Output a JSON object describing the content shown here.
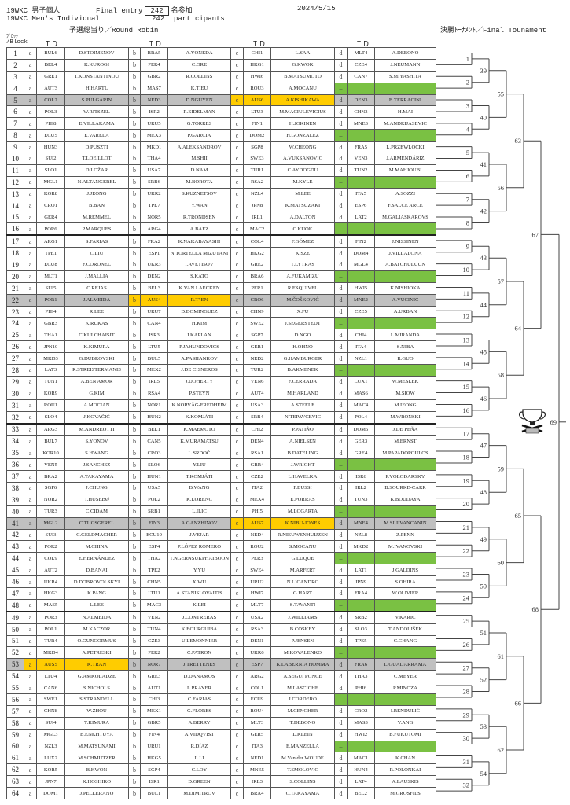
{
  "header": {
    "title_jp": "19WKC 男子個人",
    "final_entry_label": "Final entry",
    "entry_count": "242",
    "entry_suffix_jp": "名参加",
    "date": "2024/5/15",
    "title_en": "19WKC Men's Individual",
    "participants_count": "242",
    "participants_label": "participants",
    "round_robin_label": "予選総当り／Round Robin",
    "final_tournament_label": "決勝ﾄｰﾅﾒﾝﾄ／Final Tounament",
    "block_label_jp": "ﾌﾞﾛｯｸ",
    "block_label_en": "/Block",
    "id_label": "ＩＤ"
  },
  "colors": {
    "highlight_gold": "#ffcc00",
    "highlight_grey": "#c0c0c0",
    "bye_green": "#7ac143"
  },
  "groups": [
    "a",
    "b",
    "c",
    "d"
  ],
  "bye_marker": "–",
  "rows": [
    {
      "no": "1",
      "a": [
        "BUL6",
        "D.STOIMENOV"
      ],
      "b": [
        "BRA5",
        "A.YONEDA"
      ],
      "c": [
        "CHI1",
        "L.SAA"
      ],
      "d": [
        "MLT4",
        "A.DEBONO"
      ]
    },
    {
      "no": "2",
      "a": [
        "BEL4",
        "K.KUROGI"
      ],
      "b": [
        "PER4",
        "C.ORE"
      ],
      "c": [
        "HKG1",
        "G.KWOK"
      ],
      "d": [
        "CZE4",
        "J.NEUMANN"
      ]
    },
    {
      "no": "3",
      "a": [
        "GRE1",
        "T.KONSTANTINOU"
      ],
      "b": [
        "GBR2",
        "R.COLLINS"
      ],
      "c": [
        "HWI6",
        "B.MATSUMOTO"
      ],
      "d": [
        "CAN7",
        "S.MIYASHITA"
      ]
    },
    {
      "no": "4",
      "a": [
        "AUT3",
        "H.HÄRTL"
      ],
      "b": [
        "MAS7",
        "K.TIEU"
      ],
      "c": [
        "ROU3",
        "A.MOCANU"
      ],
      "d": null
    },
    {
      "no": "5",
      "a": [
        "COL2",
        "S.PULGARIN"
      ],
      "b": [
        "NED3",
        "D.NGUYEN"
      ],
      "c": [
        "AUS6",
        "A.KISHIKAWA"
      ],
      "d": [
        "DEN3",
        "B.TERRACINI"
      ],
      "hl": {
        "a": "grey",
        "b": "grey",
        "c": "gold",
        "d": "grey"
      }
    },
    {
      "no": "6",
      "a": [
        "POL3",
        "W.RITSZEL"
      ],
      "b": [
        "ISR2",
        "R.EIDELMAN"
      ],
      "c": [
        "LTU3",
        "M.MACIULEVICIUS"
      ],
      "d": [
        "CHN3",
        "H.MAI"
      ]
    },
    {
      "no": "7",
      "a": [
        "PHI8",
        "E.VILLARAMA"
      ],
      "b": [
        "URU5",
        "G.TORRES"
      ],
      "c": [
        "FIN1",
        "H.JOKINEN"
      ],
      "d": [
        "MNE3",
        "M.ANDRIJASEVIC"
      ]
    },
    {
      "no": "8",
      "a": [
        "ECU5",
        "E.VARELA"
      ],
      "b": [
        "MEX3",
        "P.GARCIA"
      ],
      "c": [
        "DOM2",
        "H.GONZALEZ"
      ],
      "d": null
    },
    {
      "no": "9",
      "a": [
        "HUN3",
        "D.PUSZTI"
      ],
      "b": [
        "MKD1",
        "A.ALEKSANDROV"
      ],
      "c": [
        "SGP8",
        "W.CHEONG"
      ],
      "d": [
        "FRA5",
        "L.PRZEWLOCKI"
      ]
    },
    {
      "no": "10",
      "a": [
        "SUI2",
        "T.LOEILLOT"
      ],
      "b": [
        "THA4",
        "M.SHII"
      ],
      "c": [
        "SWE3",
        "A.VUKSANOVIC"
      ],
      "d": [
        "VEN3",
        "J.ARMENDÁRIZ"
      ]
    },
    {
      "no": "11",
      "a": [
        "SLO1",
        "D.LOŽAR"
      ],
      "b": [
        "USA7",
        "D.NAM"
      ],
      "c": [
        "TUR1",
        "C.AYDOGDU"
      ],
      "d": [
        "TUN2",
        "M.MAHJOUBI"
      ]
    },
    {
      "no": "12",
      "a": [
        "MGL1",
        "N.ALTANGEREL"
      ],
      "b": [
        "SRB6",
        "M.BOROTA"
      ],
      "c": [
        "RSA2",
        "M.KYLE"
      ],
      "d": null
    },
    {
      "no": "13",
      "a": [
        "KOR8",
        "J.JEONG"
      ],
      "b": [
        "UKR2",
        "S.KUZNETSOV"
      ],
      "c": [
        "NZL4",
        "M.LEE"
      ],
      "d": [
        "ITA5",
        "A.SOZZI"
      ]
    },
    {
      "no": "14",
      "a": [
        "CRO1",
        "B.BAN"
      ],
      "b": [
        "TPE7",
        "Y.WAN"
      ],
      "c": [
        "JPN8",
        "K.MATSUZAKI"
      ],
      "d": [
        "ESP6",
        "F.SALCE ARCE"
      ]
    },
    {
      "no": "15",
      "a": [
        "GER4",
        "M.REMMEL"
      ],
      "b": [
        "NOR5",
        "R.TRONDSEN"
      ],
      "c": [
        "IRL1",
        "A.DALTON"
      ],
      "d": [
        "LAT2",
        "M.GALIASKAROVS"
      ]
    },
    {
      "no": "16",
      "a": [
        "POR6",
        "P.MARQUES"
      ],
      "b": [
        "ARG4",
        "A.BAEZ"
      ],
      "c": [
        "MAC2",
        "C.KUOK"
      ],
      "d": null
    },
    {
      "no": "17",
      "a": [
        "ARG1",
        "S.FARIAS"
      ],
      "b": [
        "FRA2",
        "K.NAKABAYASHI"
      ],
      "c": [
        "COL4",
        "F.GÓMEZ"
      ],
      "d": [
        "FIN2",
        "J.NISSINEN"
      ]
    },
    {
      "no": "18",
      "a": [
        "TPE1",
        "C.LIU"
      ],
      "b": [
        "ESP1",
        "N.TORTELLA MIZUTANI"
      ],
      "c": [
        "HKG2",
        "K.SZE"
      ],
      "d": [
        "DOM4",
        "J.VILLALONA"
      ]
    },
    {
      "no": "19",
      "a": [
        "ECU8",
        "F.CORONEL"
      ],
      "b": [
        "UKR3",
        "I.AVETISOV"
      ],
      "c": [
        "GRE2",
        "T.LYTRAS"
      ],
      "d": [
        "MGL4",
        "A.BATCHULUUN"
      ]
    },
    {
      "no": "20",
      "a": [
        "MLT1",
        "J.MALLIA"
      ],
      "b": [
        "DEN2",
        "S.KATO"
      ],
      "c": [
        "BRA6",
        "A.FUKAMIZU"
      ],
      "d": null
    },
    {
      "no": "21",
      "a": [
        "SUI5",
        "C.REJAS"
      ],
      "b": [
        "BEL3",
        "K.VAN LAECKEN"
      ],
      "c": [
        "PER1",
        "R.ESQUIVEL"
      ],
      "d": [
        "HWI5",
        "K.NISHIOKA"
      ]
    },
    {
      "no": "22",
      "a": [
        "POR1",
        "J.ALMEIDA"
      ],
      "b": [
        "AUS4",
        "R.T' EN"
      ],
      "c": [
        "CRO6",
        "M.ČOŠKOVIĆ"
      ],
      "d": [
        "MNE2",
        "A.VUCINIC"
      ],
      "hl": {
        "a": "grey",
        "b": "gold",
        "c": "grey",
        "d": "grey"
      }
    },
    {
      "no": "23",
      "a": [
        "PHI4",
        "R.LEE"
      ],
      "b": [
        "URU7",
        "D.DOMINGUEZ"
      ],
      "c": [
        "CHN9",
        "X.FU"
      ],
      "d": [
        "CZE5",
        "A.URBAN"
      ]
    },
    {
      "no": "24",
      "a": [
        "GBR3",
        "K.RUKAS"
      ],
      "b": [
        "CAN4",
        "H.KIM"
      ],
      "c": [
        "SWE2",
        "J.SEGERSTEDT"
      ],
      "d": null
    },
    {
      "no": "25",
      "a": [
        "THA1",
        "C.KULCHAISIT"
      ],
      "b": [
        "ISR3",
        "I.KAPLAN"
      ],
      "c": [
        "SGP7",
        "D.NGO"
      ],
      "d": [
        "CHI4",
        "L.MIRANDA"
      ]
    },
    {
      "no": "26",
      "a": [
        "JPN10",
        "K.KIMURA"
      ],
      "b": [
        "LTU5",
        "P.JAHUNDOVICS"
      ],
      "c": [
        "GER1",
        "H.OHNO"
      ],
      "d": [
        "ITA4",
        "S.NIBA"
      ]
    },
    {
      "no": "27",
      "a": [
        "MKD3",
        "G.DUBROVSKI"
      ],
      "b": [
        "BUL5",
        "A.PASHANKOV"
      ],
      "c": [
        "NED2",
        "G.HAMBURGER"
      ],
      "d": [
        "NZL1",
        "R.GUO"
      ]
    },
    {
      "no": "28",
      "a": [
        "LAT3",
        "R.STREISTERMANIS"
      ],
      "b": [
        "MEX2",
        "J.DE CISNEROS"
      ],
      "c": [
        "TUR2",
        "B.AKMENEK"
      ],
      "d": null
    },
    {
      "no": "29",
      "a": [
        "TUN1",
        "A.BEN AMOR"
      ],
      "b": [
        "IRL5",
        "J.DOHERTY"
      ],
      "c": [
        "VEN6",
        "F.CERRADA"
      ],
      "d": [
        "LUX1",
        "W.MESLEK"
      ]
    },
    {
      "no": "30",
      "a": [
        "KOR9",
        "G.KIM"
      ],
      "b": [
        "RSA4",
        "P.STEYN"
      ],
      "c": [
        "AUT4",
        "M.HARLAND"
      ],
      "d": [
        "MAS6",
        "M.SIOW"
      ]
    },
    {
      "no": "31",
      "a": [
        "ROU1",
        "A.MOCIAN"
      ],
      "b": [
        "NOR1",
        "K.NORVÅG-FREDHEIM"
      ],
      "c": [
        "USA3",
        "A.STEELE"
      ],
      "d": [
        "MAC4",
        "M.IEONG"
      ]
    },
    {
      "no": "32",
      "a": [
        "SLO4",
        "J.KOVAČIČ"
      ],
      "b": [
        "HUN2",
        "K.KOMJÁTI"
      ],
      "c": [
        "SRB4",
        "N.TEPAVCEVIC"
      ],
      "d": [
        "POL4",
        "M.WROŃSKI"
      ]
    },
    {
      "no": "33",
      "a": [
        "ARG3",
        "M.ANDREOTTI"
      ],
      "b": [
        "BEL1",
        "K.MAEMOTO"
      ],
      "c": [
        "CHI2",
        "P.PATIÑO"
      ],
      "d": [
        "DOM5",
        "J.DE PEÑA"
      ]
    },
    {
      "no": "34",
      "a": [
        "BUL7",
        "S.YONOV"
      ],
      "b": [
        "CAN5",
        "K.MURAMATSU"
      ],
      "c": [
        "DEN4",
        "A.NIELSEN"
      ],
      "d": [
        "GER3",
        "M.ERNST"
      ]
    },
    {
      "no": "35",
      "a": [
        "KOR10",
        "S.HWANG"
      ],
      "b": [
        "CRO3",
        "L.SRDOČ"
      ],
      "c": [
        "RSA1",
        "B.DATELING"
      ],
      "d": [
        "GRE4",
        "M.PAPADOPOULOS"
      ]
    },
    {
      "no": "36",
      "a": [
        "VEN5",
        "J.SANCHEZ"
      ],
      "b": [
        "SLO6",
        "Y.LIU"
      ],
      "c": [
        "GBR4",
        "J.WRIGHT"
      ],
      "d": null
    },
    {
      "no": "37",
      "a": [
        "BRA2",
        "A.TAKAYAMA"
      ],
      "b": [
        "HUN1",
        "T.KOMJÁTI"
      ],
      "c": [
        "CZE2",
        "L.HAVELKA"
      ],
      "d": [
        "ISR6",
        "P.VOLODARSKY"
      ]
    },
    {
      "no": "38",
      "a": [
        "SGP6",
        "J.CHUNG"
      ],
      "b": [
        "USA5",
        "B.WANG"
      ],
      "c": [
        "ITA2",
        "F.BUSSI"
      ],
      "d": [
        "IRL2",
        "B.SOURKE-CARR"
      ]
    },
    {
      "no": "39",
      "a": [
        "NOR2",
        "T.HUSEBØ"
      ],
      "b": [
        "POL2",
        "K.LORENC"
      ],
      "c": [
        "MEX4",
        "E.PORRAS"
      ],
      "d": [
        "TUN3",
        "K.BOUDAYA"
      ]
    },
    {
      "no": "40",
      "a": [
        "TUR3",
        "C.CIDAM"
      ],
      "b": [
        "SRB1",
        "L.ILIC"
      ],
      "c": [
        "PHI5",
        "M.LOGARTA"
      ],
      "d": null
    },
    {
      "no": "41",
      "a": [
        "MGL2",
        "C.TUGSGEREL"
      ],
      "b": [
        "FIN3",
        "A.GANZHINOV"
      ],
      "c": [
        "AUS7",
        "K.NIBU-JONES"
      ],
      "d": [
        "MNE4",
        "M.SLJIVANCANIN"
      ],
      "hl": {
        "a": "grey",
        "b": "grey",
        "c": "gold",
        "d": "grey"
      }
    },
    {
      "no": "42",
      "a": [
        "SUI3",
        "C.GELDMACHER"
      ],
      "b": [
        "ECU10",
        "J.VEJAR"
      ],
      "c": [
        "NED4",
        "R.NIEUWENHUIJZEN"
      ],
      "d": [
        "NZL8",
        "Z.PENN"
      ]
    },
    {
      "no": "43",
      "a": [
        "POR2",
        "M.CHINA"
      ],
      "b": [
        "ESP4",
        "P.LÓPEZ ROMERO"
      ],
      "c": [
        "ROU2",
        "S.MOCANU"
      ],
      "d": [
        "MKD2",
        "M.IVANOVSKI"
      ]
    },
    {
      "no": "44",
      "a": [
        "COL9",
        "E.HERNÁNDEZ"
      ],
      "b": [
        "THA2",
        "T.NGERNSUKPHAIBOON"
      ],
      "c": [
        "PER3",
        "G.LUQUE"
      ],
      "d": null
    },
    {
      "no": "45",
      "a": [
        "AUT2",
        "D.BANAI"
      ],
      "b": [
        "TPE2",
        "Y.YU"
      ],
      "c": [
        "SWE4",
        "M.ARFERT"
      ],
      "d": [
        "LAT1",
        "J.GALDINS"
      ]
    },
    {
      "no": "46",
      "a": [
        "UKR4",
        "D.DOBROVOLSKYI"
      ],
      "b": [
        "CHN5",
        "X.WU"
      ],
      "c": [
        "URU2",
        "N.LICANDRO"
      ],
      "d": [
        "JPN9",
        "S.OHIRA"
      ]
    },
    {
      "no": "47",
      "a": [
        "HKG3",
        "K.PANG"
      ],
      "b": [
        "LTU1",
        "A.STANISLOVAITIS"
      ],
      "c": [
        "HWI7",
        "G.HART"
      ],
      "d": [
        "FRA4",
        "W.OLIVIER"
      ]
    },
    {
      "no": "48",
      "a": [
        "MAS5",
        "L.LEE"
      ],
      "b": [
        "MAC3",
        "K.LEI"
      ],
      "c": [
        "MLT7",
        "S.TAVANTI"
      ],
      "d": null
    },
    {
      "no": "49",
      "a": [
        "POR3",
        "N.ALMEIDA"
      ],
      "b": [
        "VEN2",
        "J.CONTRERAS"
      ],
      "c": [
        "USA2",
        "J.WILLIAMS"
      ],
      "d": [
        "SRB2",
        "V.KARIC"
      ]
    },
    {
      "no": "50",
      "a": [
        "POL1",
        "M.KACZOR"
      ],
      "b": [
        "TUN4",
        "K.BOURGUIBA"
      ],
      "c": [
        "RSA3",
        "B.COSKEY"
      ],
      "d": [
        "SLO3",
        "T.ANDOLJŠEK"
      ]
    },
    {
      "no": "51",
      "a": [
        "TUR4",
        "O.GUNGORMUS"
      ],
      "b": [
        "CZE3",
        "U.LEMONNIER"
      ],
      "c": [
        "DEN1",
        "P.JENSEN"
      ],
      "d": [
        "TPE5",
        "C.CHANG"
      ]
    },
    {
      "no": "52",
      "a": [
        "MKD4",
        "A.PETRESKI"
      ],
      "b": [
        "PER2",
        "C.PATRON"
      ],
      "c": [
        "UKR6",
        "M.KOVALENKO"
      ],
      "d": null
    },
    {
      "no": "53",
      "a": [
        "AUS5",
        "K.TRAN"
      ],
      "b": [
        "NOR7",
        "J.TRETTENES"
      ],
      "c": [
        "ESP7",
        "K.LABERNIA HOMMA"
      ],
      "d": [
        "FRA6",
        "L.GUADARRAMA"
      ],
      "hl": {
        "a": "gold",
        "b": "grey",
        "c": "grey",
        "d": "grey"
      }
    },
    {
      "no": "54",
      "a": [
        "LTU4",
        "G.AMKOLADZE"
      ],
      "b": [
        "GRE3",
        "D.DANAMOS"
      ],
      "c": [
        "ARG2",
        "A.SEGUI PONCE"
      ],
      "d": [
        "THA3",
        "C.MEYER"
      ]
    },
    {
      "no": "55",
      "a": [
        "CAN6",
        "S.NICHOLS"
      ],
      "b": [
        "AUT1",
        "L.PRAYER"
      ],
      "c": [
        "COL1",
        "M.LASCICHE"
      ],
      "d": [
        "PHI6",
        "P.MINOZA"
      ]
    },
    {
      "no": "56",
      "a": [
        "SWE1",
        "S.STRANDELL"
      ],
      "b": [
        "CHI3",
        "C.FARIAS"
      ],
      "c": [
        "ECU9",
        "J.CORDERO"
      ],
      "d": null
    },
    {
      "no": "57",
      "a": [
        "CHN8",
        "W.ZHOU"
      ],
      "b": [
        "MEX1",
        "G.FLORES"
      ],
      "c": [
        "ROU4",
        "M.CENGHER"
      ],
      "d": [
        "CRO2",
        "I.RENDULIĆ"
      ]
    },
    {
      "no": "58",
      "a": [
        "SUI4",
        "T.KIMURA"
      ],
      "b": [
        "GBR5",
        "A.BERRY"
      ],
      "c": [
        "MLT3",
        "T.DEBONO"
      ],
      "d": [
        "MAS3",
        "Y.ANG"
      ]
    },
    {
      "no": "59",
      "a": [
        "MGL3",
        "B.ENKHTUYA"
      ],
      "b": [
        "FIN4",
        "A.VIDQVIST"
      ],
      "c": [
        "GER5",
        "L.KLEIN"
      ],
      "d": [
        "HWI2",
        "B.FUKUTOMI"
      ]
    },
    {
      "no": "60",
      "a": [
        "NZL3",
        "M.MATSUNAMI"
      ],
      "b": [
        "URU1",
        "R.DÍAZ"
      ],
      "c": [
        "ITA3",
        "E.MANZELLA"
      ],
      "d": null
    },
    {
      "no": "61",
      "a": [
        "LUX2",
        "M.SCHMUTZER"
      ],
      "b": [
        "HKG5",
        "L.LI"
      ],
      "c": [
        "NED1",
        "M.Van der WOUDE"
      ],
      "d": [
        "MAC1",
        "K.CHAN"
      ]
    },
    {
      "no": "62",
      "a": [
        "KOR5",
        "B.KWON"
      ],
      "b": [
        "SGP4",
        "C.LOY"
      ],
      "c": [
        "MNE5",
        "T.SMOLOVIC"
      ],
      "d": [
        "HUN4",
        "R.POLONKAI"
      ]
    },
    {
      "no": "63",
      "a": [
        "JPN7",
        "K.HOSHIKO"
      ],
      "b": [
        "ISR1",
        "D.GREEN"
      ],
      "c": [
        "IRL3",
        "S.COLLINS"
      ],
      "d": [
        "LAT4",
        "A.LAUSKIS"
      ]
    },
    {
      "no": "64",
      "a": [
        "DOM1",
        "J.PELLERANO"
      ],
      "b": [
        "BUL1",
        "M.DIMITROV"
      ],
      "c": [
        "BRA4",
        "C.TAKAYAMA"
      ],
      "d": [
        "BEL2",
        "M.GROSFILS"
      ]
    }
  ],
  "bracket": {
    "round1": [
      "1",
      "2",
      "3",
      "4",
      "5",
      "6",
      "7",
      "8",
      "9",
      "10",
      "11",
      "12",
      "13",
      "14",
      "15",
      "16",
      "17",
      "18",
      "19",
      "20",
      "21",
      "22",
      "23",
      "24",
      "25",
      "26",
      "27",
      "28",
      "29",
      "30",
      "31",
      "32"
    ],
    "round2": [
      "39",
      "40",
      "41",
      "42",
      "43",
      "44",
      "45",
      "46",
      "47",
      "48",
      "49",
      "50",
      "51",
      "52",
      "53",
      "54"
    ],
    "round3": [
      "55",
      "56",
      "57",
      "58",
      "59",
      "60",
      "61",
      "62"
    ],
    "round4": [
      "63",
      "64",
      "65",
      "66"
    ],
    "semifinal": [
      "67",
      "68"
    ],
    "final": [
      "69"
    ],
    "trophy_icon": "trophy-icon"
  }
}
